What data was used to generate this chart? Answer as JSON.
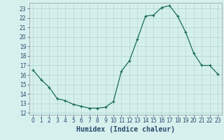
{
  "x": [
    0,
    1,
    2,
    3,
    4,
    5,
    6,
    7,
    8,
    9,
    10,
    11,
    12,
    13,
    14,
    15,
    16,
    17,
    18,
    19,
    20,
    21,
    22,
    23
  ],
  "y": [
    16.5,
    15.5,
    14.7,
    13.5,
    13.3,
    12.9,
    12.7,
    12.5,
    12.5,
    12.6,
    13.2,
    16.4,
    17.5,
    19.8,
    22.2,
    22.3,
    23.1,
    23.3,
    22.2,
    20.5,
    18.3,
    17.0,
    17.0,
    16.1
  ],
  "xlabel": "Humidex (Indice chaleur)",
  "ylim": [
    11.8,
    23.6
  ],
  "xlim": [
    -0.5,
    23.5
  ],
  "yticks": [
    12,
    13,
    14,
    15,
    16,
    17,
    18,
    19,
    20,
    21,
    22,
    23
  ],
  "xticks": [
    0,
    1,
    2,
    3,
    4,
    5,
    6,
    7,
    8,
    9,
    10,
    11,
    12,
    13,
    14,
    15,
    16,
    17,
    18,
    19,
    20,
    21,
    22,
    23
  ],
  "line_color": "#1a6b5a",
  "marker_color": "#1a6b5a",
  "bg_color": "#d6f0ee",
  "grid_major_color": "#b0d4d0",
  "grid_minor_color": "#c4e8e4",
  "xlabel_fontsize": 7,
  "tick_fontsize": 5.5,
  "tick_color": "#2a4a6a"
}
